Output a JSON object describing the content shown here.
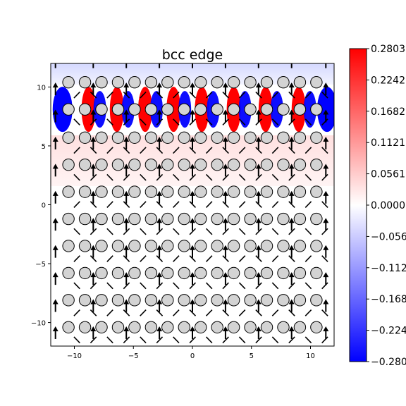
{
  "chart_data": {
    "type": "heatmap",
    "title": "bcc edge",
    "xlabel": "",
    "ylabel": "",
    "xlim": [
      -12,
      12
    ],
    "ylim": [
      -12,
      12
    ],
    "x_ticks": [
      -10,
      -5,
      0,
      5,
      10
    ],
    "x_tick_labels": [
      "−10",
      "−5",
      "0",
      "5",
      "10"
    ],
    "y_ticks": [
      10,
      5,
      0,
      -5,
      -10
    ],
    "y_tick_labels": [
      "10",
      "5",
      "0",
      "−5",
      "−10"
    ],
    "colormap": "bwr",
    "colors": {
      "min": "#0000ff",
      "mid": "#ffffff",
      "max": "#ff0000"
    },
    "color_range": [
      -0.2803,
      0.2803
    ],
    "colorbar_ticks": [
      0.2803,
      0.2242,
      0.1682,
      0.1121,
      0.0561,
      0.0,
      -0.0561,
      -0.1121,
      -0.1682,
      -0.2242,
      -0.2803
    ],
    "colorbar_tick_labels": [
      "0.2803",
      "0.2242",
      "0.1682",
      "0.1121",
      "0.0561",
      "0.0000",
      "−0.0561",
      "−0.1121",
      "−0.1682",
      "−0.2242",
      "−0.2803"
    ],
    "atom_columns_x": [
      -10.5,
      -9.1,
      -7.7,
      -6.3,
      -4.9,
      -3.5,
      -2.1,
      -0.7,
      0.7,
      2.1,
      3.5,
      4.9,
      6.3,
      7.7,
      9.1,
      10.5
    ],
    "atom_rows_y": [
      10.4,
      8.1,
      5.7,
      3.4,
      1.1,
      -1.2,
      -3.5,
      -5.8,
      -8.1,
      -10.4
    ],
    "atom_color": "#d3d3d3",
    "core_row_y": 8.1,
    "core_stripes": [
      {
        "x": -11.0,
        "value": -0.2803
      },
      {
        "x": -8.8,
        "value": 0.2803
      },
      {
        "x": -6.4,
        "value": 0.2803
      },
      {
        "x": -4.0,
        "value": 0.2803
      },
      {
        "x": -1.6,
        "value": 0.2803
      },
      {
        "x": 0.8,
        "value": 0.2803
      },
      {
        "x": 3.5,
        "value": 0.2803
      },
      {
        "x": 6.2,
        "value": 0.2803
      },
      {
        "x": 9.0,
        "value": 0.2803
      },
      {
        "x": 11.4,
        "value": -0.2803
      }
    ],
    "arrow_columns_x": [
      -11.6,
      -8.4,
      -5.6,
      -2.8,
      0,
      2.8,
      5.6,
      8.4,
      11.3
    ]
  }
}
